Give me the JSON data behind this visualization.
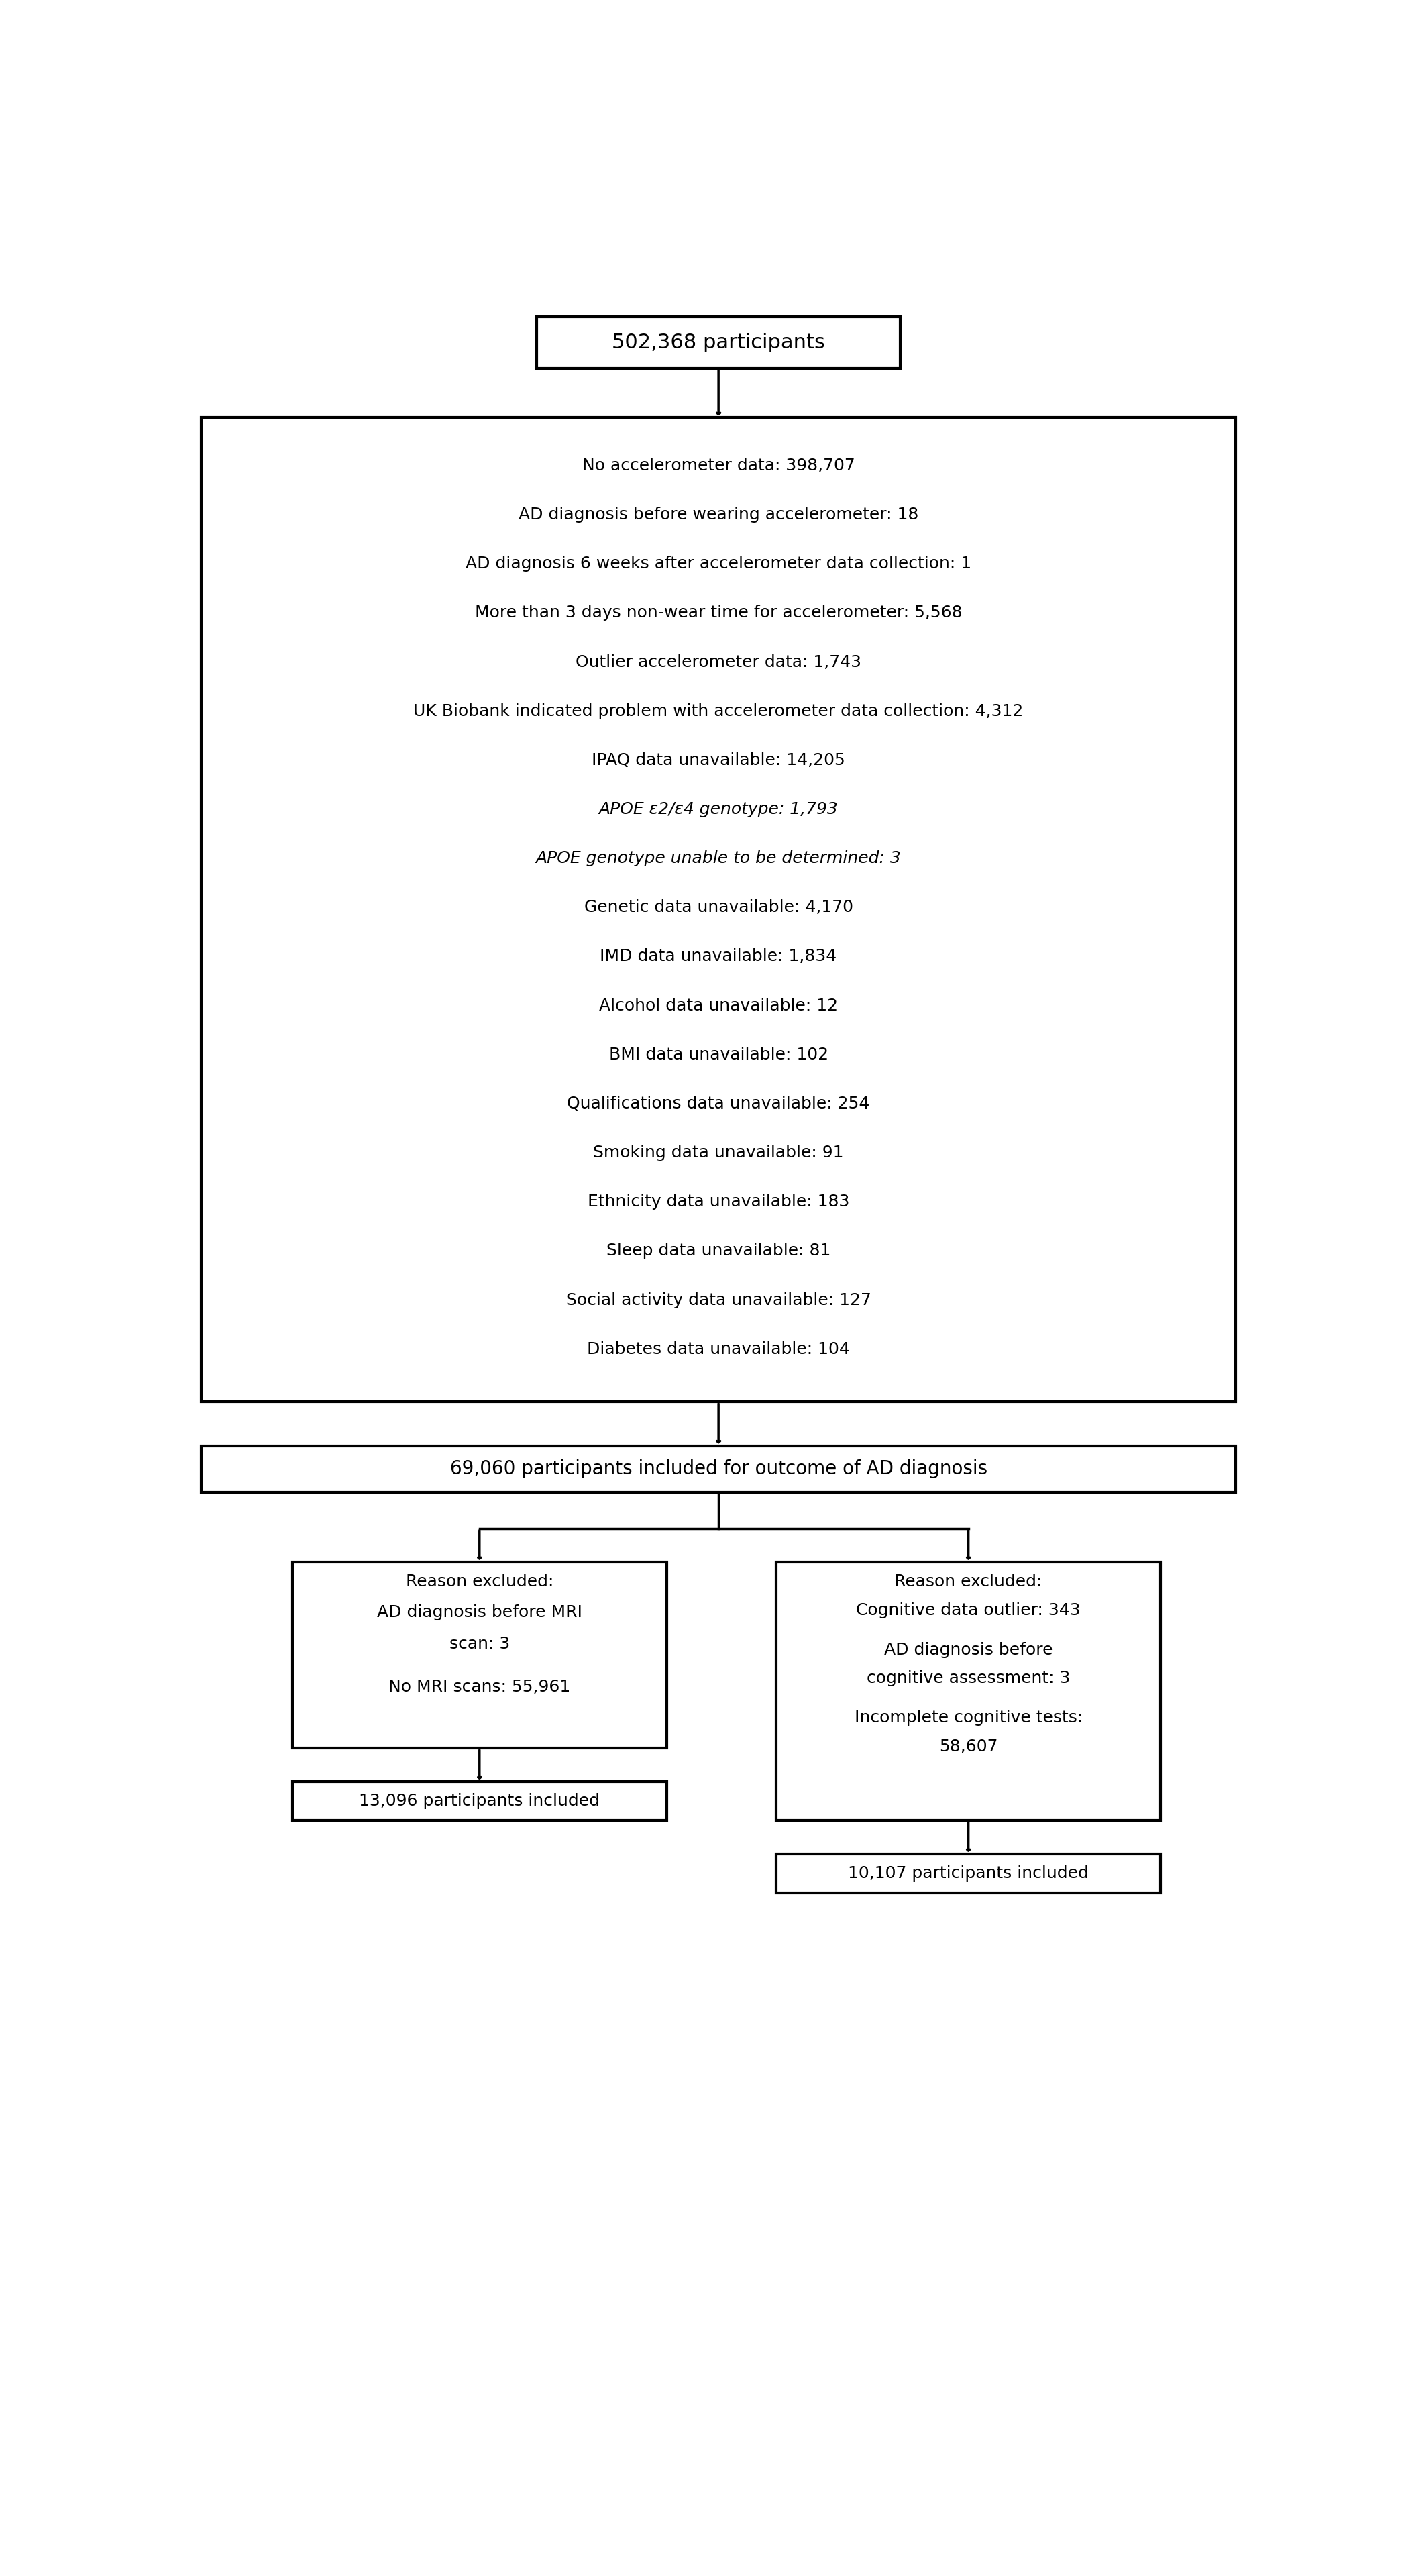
{
  "top_box": "502,368 participants",
  "exclusion_lines": [
    "No accelerometer data: 398,707",
    "AD diagnosis before wearing accelerometer: 18",
    "AD diagnosis 6 weeks after accelerometer data collection: 1",
    "More than 3 days non-wear time for accelerometer: 5,568",
    "Outlier accelerometer data: 1,743",
    "UK Biobank indicated problem with accelerometer data collection: 4,312",
    "IPAQ data unavailable: 14,205",
    "APOE ε2/ε4 genotype: 1,793",
    "APOE genotype unable to be determined: 3",
    "Genetic data unavailable: 4,170",
    "IMD data unavailable: 1,834",
    "Alcohol data unavailable: 12",
    "BMI data unavailable: 102",
    "Qualifications data unavailable: 254",
    "Smoking data unavailable: 91",
    "Ethnicity data unavailable: 183",
    "Sleep data unavailable: 81",
    "Social activity data unavailable: 127",
    "Diabetes data unavailable: 104"
  ],
  "exclusion_italic_indices": [
    7,
    8
  ],
  "middle_box": "69,060 participants included for outcome of AD diagnosis",
  "left_box_title": "Reason excluded:",
  "left_box_lines": [
    "AD diagnosis before MRI",
    "scan: 3",
    "",
    "No MRI scans: 55,961"
  ],
  "left_bottom_box": "13,096 participants included",
  "right_box_title": "Reason excluded:",
  "right_box_lines": [
    "Cognitive data outlier: 343",
    "",
    "AD diagnosis before",
    "cognitive assessment: 3",
    "",
    "Incomplete cognitive tests:",
    "58,607"
  ],
  "right_bottom_box": "10,107 participants included",
  "bg_color": "#ffffff",
  "box_color": "#000000",
  "text_color": "#000000"
}
